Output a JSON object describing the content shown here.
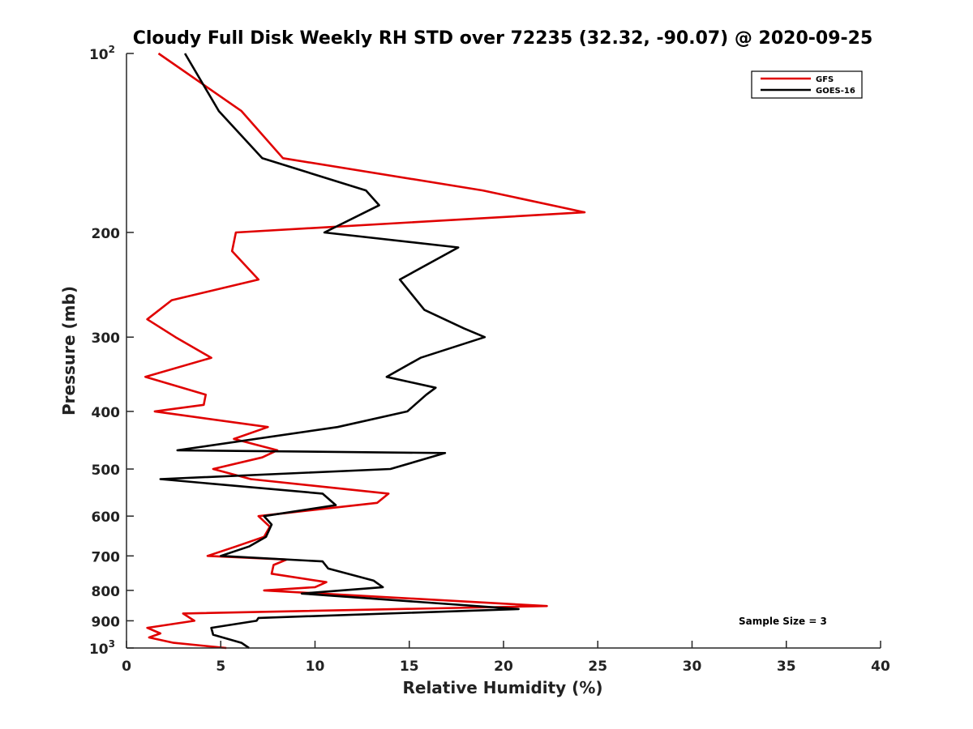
{
  "chart_data": {
    "type": "line",
    "title": "Cloudy Full Disk Weekly RH STD over 72235 (32.32, -90.07) @ 2020-09-25",
    "xlabel": "Relative Humidity (%)",
    "ylabel": "Pressure (mb)",
    "xlim": [
      0,
      40
    ],
    "ylim": [
      100,
      1000
    ],
    "y_scale": "log",
    "y_reversed": true,
    "x_ticks": [
      "0",
      "5",
      "10",
      "15",
      "20",
      "25",
      "30",
      "35",
      "40"
    ],
    "x_tick_values": [
      0,
      5,
      10,
      15,
      20,
      25,
      30,
      35,
      40
    ],
    "y_ticks": [
      {
        "value": 100,
        "base": "10",
        "exp": "2"
      },
      {
        "value": 200,
        "label": "200"
      },
      {
        "value": 300,
        "label": "300"
      },
      {
        "value": 400,
        "label": "400"
      },
      {
        "value": 500,
        "label": "500"
      },
      {
        "value": 600,
        "label": "600"
      },
      {
        "value": 700,
        "label": "700"
      },
      {
        "value": 800,
        "label": "800"
      },
      {
        "value": 900,
        "label": "900"
      },
      {
        "value": 1000,
        "base": "10",
        "exp": "3"
      }
    ],
    "legend_position": "top-right",
    "annotation": "Sample Size = 3",
    "series": [
      {
        "name": "GFS",
        "color": "#e00000",
        "points": [
          {
            "p": 100,
            "x": 1.7
          },
          {
            "p": 125,
            "x": 6.1
          },
          {
            "p": 150,
            "x": 8.3
          },
          {
            "p": 170,
            "x": 18.9
          },
          {
            "p": 185,
            "x": 24.3
          },
          {
            "p": 200,
            "x": 5.8
          },
          {
            "p": 215,
            "x": 5.6
          },
          {
            "p": 240,
            "x": 7.0
          },
          {
            "p": 260,
            "x": 2.4
          },
          {
            "p": 280,
            "x": 1.1
          },
          {
            "p": 300,
            "x": 2.6
          },
          {
            "p": 325,
            "x": 4.5
          },
          {
            "p": 350,
            "x": 1.0
          },
          {
            "p": 375,
            "x": 4.2
          },
          {
            "p": 390,
            "x": 4.1
          },
          {
            "p": 400,
            "x": 1.5
          },
          {
            "p": 425,
            "x": 7.5
          },
          {
            "p": 445,
            "x": 5.7
          },
          {
            "p": 465,
            "x": 8.0
          },
          {
            "p": 478,
            "x": 7.2
          },
          {
            "p": 500,
            "x": 4.6
          },
          {
            "p": 520,
            "x": 6.6
          },
          {
            "p": 550,
            "x": 13.9
          },
          {
            "p": 570,
            "x": 13.3
          },
          {
            "p": 600,
            "x": 7.0
          },
          {
            "p": 625,
            "x": 7.6
          },
          {
            "p": 650,
            "x": 7.3
          },
          {
            "p": 675,
            "x": 5.8
          },
          {
            "p": 700,
            "x": 4.3
          },
          {
            "p": 710,
            "x": 8.5
          },
          {
            "p": 725,
            "x": 7.8
          },
          {
            "p": 750,
            "x": 7.7
          },
          {
            "p": 775,
            "x": 10.6
          },
          {
            "p": 790,
            "x": 10.0
          },
          {
            "p": 800,
            "x": 7.3
          },
          {
            "p": 850,
            "x": 22.3
          },
          {
            "p": 875,
            "x": 3.0
          },
          {
            "p": 900,
            "x": 3.6
          },
          {
            "p": 925,
            "x": 1.1
          },
          {
            "p": 945,
            "x": 1.8
          },
          {
            "p": 960,
            "x": 1.2
          },
          {
            "p": 980,
            "x": 2.5
          },
          {
            "p": 1000,
            "x": 5.3
          }
        ]
      },
      {
        "name": "GOES-16",
        "color": "#000000",
        "points": [
          {
            "p": 100,
            "x": 3.1
          },
          {
            "p": 125,
            "x": 4.9
          },
          {
            "p": 150,
            "x": 7.2
          },
          {
            "p": 170,
            "x": 12.7
          },
          {
            "p": 180,
            "x": 13.4
          },
          {
            "p": 200,
            "x": 10.5
          },
          {
            "p": 212,
            "x": 17.6
          },
          {
            "p": 240,
            "x": 14.5
          },
          {
            "p": 270,
            "x": 15.8
          },
          {
            "p": 290,
            "x": 17.9
          },
          {
            "p": 300,
            "x": 19.0
          },
          {
            "p": 325,
            "x": 15.6
          },
          {
            "p": 350,
            "x": 13.8
          },
          {
            "p": 365,
            "x": 16.4
          },
          {
            "p": 375,
            "x": 15.9
          },
          {
            "p": 400,
            "x": 14.9
          },
          {
            "p": 425,
            "x": 11.2
          },
          {
            "p": 465,
            "x": 2.7
          },
          {
            "p": 470,
            "x": 16.9
          },
          {
            "p": 500,
            "x": 14.0
          },
          {
            "p": 520,
            "x": 1.8
          },
          {
            "p": 550,
            "x": 10.4
          },
          {
            "p": 575,
            "x": 11.1
          },
          {
            "p": 590,
            "x": 8.8
          },
          {
            "p": 600,
            "x": 7.3
          },
          {
            "p": 620,
            "x": 7.7
          },
          {
            "p": 650,
            "x": 7.4
          },
          {
            "p": 675,
            "x": 6.5
          },
          {
            "p": 700,
            "x": 5.0
          },
          {
            "p": 715,
            "x": 10.4
          },
          {
            "p": 735,
            "x": 10.7
          },
          {
            "p": 770,
            "x": 13.1
          },
          {
            "p": 790,
            "x": 13.6
          },
          {
            "p": 810,
            "x": 9.3
          },
          {
            "p": 860,
            "x": 20.8
          },
          {
            "p": 890,
            "x": 7.0
          },
          {
            "p": 900,
            "x": 6.9
          },
          {
            "p": 925,
            "x": 4.5
          },
          {
            "p": 950,
            "x": 4.6
          },
          {
            "p": 980,
            "x": 6.1
          },
          {
            "p": 1000,
            "x": 6.5
          }
        ]
      }
    ]
  }
}
